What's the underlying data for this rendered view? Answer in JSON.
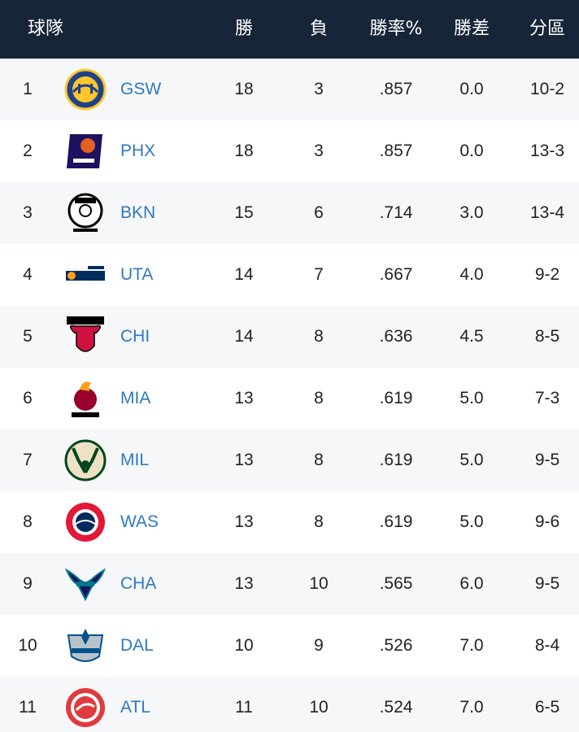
{
  "header": {
    "team": "球隊",
    "wins": "勝",
    "losses": "負",
    "pct": "勝率%",
    "gb": "勝差",
    "division": "分區"
  },
  "rows": [
    {
      "rank": "1",
      "abbr": "GSW",
      "wins": "18",
      "losses": "3",
      "pct": ".857",
      "gb": "0.0",
      "division": "10-2",
      "logo": "warriors-logo-icon",
      "logo_text": "GOLDEN STATE WARRIORS",
      "colors": [
        "#1d428a",
        "#ffc72c"
      ]
    },
    {
      "rank": "2",
      "abbr": "PHX",
      "wins": "18",
      "losses": "3",
      "pct": ".857",
      "gb": "0.0",
      "division": "13-3",
      "logo": "suns-logo-icon",
      "logo_text": "SUNS",
      "colors": [
        "#1d1160",
        "#e56020"
      ]
    },
    {
      "rank": "3",
      "abbr": "BKN",
      "wins": "15",
      "losses": "6",
      "pct": ".714",
      "gb": "3.0",
      "division": "13-4",
      "logo": "nets-logo-icon",
      "logo_text": "NETS BROOKLYN",
      "colors": [
        "#000000",
        "#ffffff"
      ]
    },
    {
      "rank": "4",
      "abbr": "UTA",
      "wins": "14",
      "losses": "7",
      "pct": ".667",
      "gb": "4.0",
      "division": "9-2",
      "logo": "jazz-logo-icon",
      "logo_text": "UTAH JAZZ",
      "colors": [
        "#002b5c",
        "#f9a01b"
      ]
    },
    {
      "rank": "5",
      "abbr": "CHI",
      "wins": "14",
      "losses": "8",
      "pct": ".636",
      "gb": "4.5",
      "division": "8-5",
      "logo": "bulls-logo-icon",
      "logo_text": "CHICAGO BULLS",
      "colors": [
        "#ce1141",
        "#000000"
      ]
    },
    {
      "rank": "6",
      "abbr": "MIA",
      "wins": "13",
      "losses": "8",
      "pct": ".619",
      "gb": "5.0",
      "division": "7-3",
      "logo": "heat-logo-icon",
      "logo_text": "MIAMI HEAT",
      "colors": [
        "#98002e",
        "#f9a01b"
      ]
    },
    {
      "rank": "7",
      "abbr": "MIL",
      "wins": "13",
      "losses": "8",
      "pct": ".619",
      "gb": "5.0",
      "division": "9-5",
      "logo": "bucks-logo-icon",
      "logo_text": "MILWAUKEE BUCKS",
      "colors": [
        "#00471b",
        "#eee1c6"
      ]
    },
    {
      "rank": "8",
      "abbr": "WAS",
      "wins": "13",
      "losses": "8",
      "pct": ".619",
      "gb": "5.0",
      "division": "9-6",
      "logo": "wizards-logo-icon",
      "logo_text": "WASHINGTON WIZARDS",
      "colors": [
        "#002b5c",
        "#e31837"
      ]
    },
    {
      "rank": "9",
      "abbr": "CHA",
      "wins": "13",
      "losses": "10",
      "pct": ".565",
      "gb": "6.0",
      "division": "9-5",
      "logo": "hornets-logo-icon",
      "logo_text": "HORNETS",
      "colors": [
        "#1d1160",
        "#00788c"
      ]
    },
    {
      "rank": "10",
      "abbr": "DAL",
      "wins": "10",
      "losses": "9",
      "pct": ".526",
      "gb": "7.0",
      "division": "8-4",
      "logo": "mavericks-logo-icon",
      "logo_text": "MAVERICKS",
      "colors": [
        "#00538c",
        "#b8c4ca"
      ]
    },
    {
      "rank": "11",
      "abbr": "ATL",
      "wins": "11",
      "losses": "10",
      "pct": ".524",
      "gb": "7.0",
      "division": "6-5",
      "logo": "hawks-logo-icon",
      "logo_text": "ATLANTA HAWKS",
      "colors": [
        "#e03a3e",
        "#c1d32f"
      ]
    }
  ]
}
